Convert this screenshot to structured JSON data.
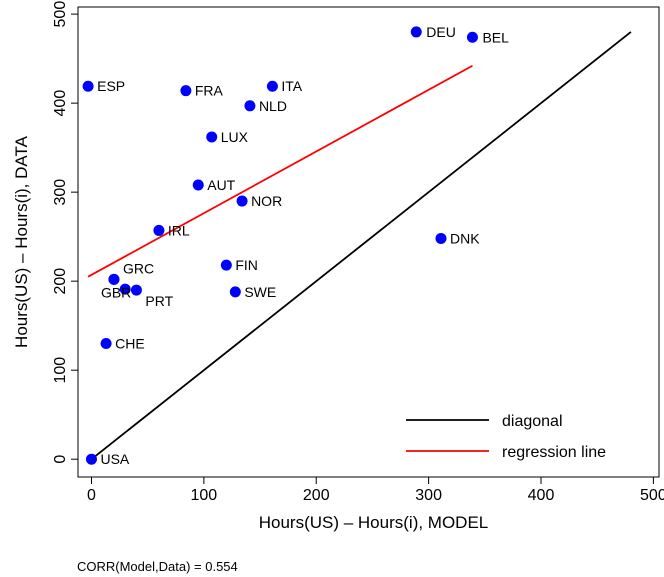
{
  "chart_data": {
    "type": "scatter",
    "title": "",
    "xlabel": "Hours(US) – Hours(i), MODEL",
    "ylabel": "Hours(US) – Hours(i), DATA",
    "xlim": [
      -12,
      505
    ],
    "ylim": [
      -20,
      508
    ],
    "xticks": [
      0,
      100,
      200,
      300,
      400,
      500
    ],
    "yticks": [
      0,
      100,
      200,
      300,
      400,
      500
    ],
    "grid": false,
    "legend_position": "bottom-right",
    "point_color": "#0000ff",
    "points": [
      {
        "label": "USA",
        "x": 0,
        "y": 0
      },
      {
        "label": "CHE",
        "x": 13,
        "y": 130
      },
      {
        "label": "GBR",
        "x": 20,
        "y": 202
      },
      {
        "label": "GRC",
        "x": 20,
        "y": 202
      },
      {
        "label": "PRT",
        "x": 40,
        "y": 190
      },
      {
        "label": "IRL",
        "x": 60,
        "y": 257
      },
      {
        "label": "ESP",
        "x": -3,
        "y": 419
      },
      {
        "label": "FRA",
        "x": 84,
        "y": 414
      },
      {
        "label": "AUT",
        "x": 95,
        "y": 308
      },
      {
        "label": "LUX",
        "x": 107,
        "y": 362
      },
      {
        "label": "FIN",
        "x": 120,
        "y": 218
      },
      {
        "label": "SWE",
        "x": 128,
        "y": 188
      },
      {
        "label": "NOR",
        "x": 134,
        "y": 290
      },
      {
        "label": "NLD",
        "x": 141,
        "y": 397
      },
      {
        "label": "ITA",
        "x": 161,
        "y": 419
      },
      {
        "label": "DEU",
        "x": 289,
        "y": 480
      },
      {
        "label": "DNK",
        "x": 311,
        "y": 248
      },
      {
        "label": "BEL",
        "x": 339,
        "y": 474
      }
    ],
    "extra_points": [
      {
        "x": 30,
        "y": 191
      }
    ],
    "series": [
      {
        "name": "diagonal",
        "color": "#000000",
        "x": [
          0,
          480
        ],
        "y": [
          0,
          480
        ]
      },
      {
        "name": "regression line",
        "color": "#ff0000",
        "x": [
          -3,
          339
        ],
        "y": [
          205,
          442
        ]
      }
    ],
    "annotation": "CORR(Model,Data) = 0.554"
  }
}
